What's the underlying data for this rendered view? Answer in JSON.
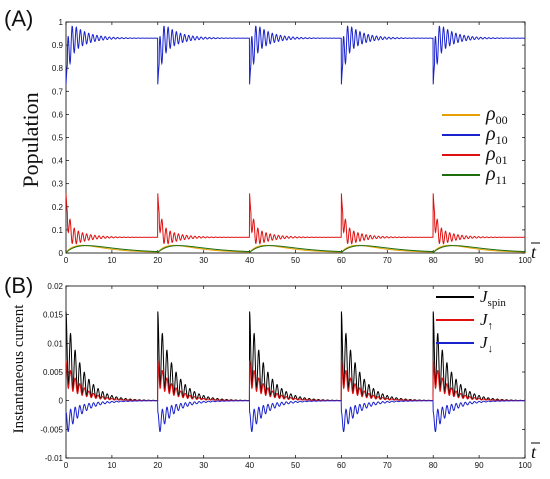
{
  "chart_data": [
    {
      "type": "line",
      "panel_label": "(A)",
      "title": "",
      "xlabel": "t",
      "ylabel": "Population",
      "xlim": [
        0,
        100
      ],
      "ylim": [
        0,
        1
      ],
      "x_ticks": [
        0,
        10,
        20,
        30,
        40,
        50,
        60,
        70,
        80,
        90,
        100
      ],
      "y_ticks": [
        "0",
        "0.1",
        "0.2",
        "0.3",
        "0.4",
        "0.5",
        "0.6",
        "0.7",
        "0.8",
        "0.9",
        "1"
      ],
      "grid": false,
      "legend_position": "right",
      "pulse_starts": [
        0,
        20,
        40,
        60,
        80
      ],
      "series": [
        {
          "name": "ρ00",
          "label_main": "ρ",
          "label_sub": "00",
          "color": "#e8a000",
          "profile": {
            "steady": 0.003,
            "peak": 0.03,
            "peak_time": 3.5,
            "decay": 3.5,
            "osc_amp": 0.0,
            "osc_period": 1.0,
            "osc_decay": 3.0
          }
        },
        {
          "name": "ρ10",
          "label_main": "ρ",
          "label_sub": "10",
          "color": "#1a22cc",
          "profile": {
            "steady": 0.93,
            "jump": -0.2,
            "osc_amp": 0.1,
            "osc_period": 0.9,
            "osc_decay": 3.2
          }
        },
        {
          "name": "ρ01",
          "label_main": "ρ",
          "label_sub": "01",
          "color": "#e01010",
          "profile": {
            "steady": 0.068,
            "jump": 0.19,
            "osc_amp": 0.06,
            "osc_period": 0.9,
            "osc_decay": 3.2
          }
        },
        {
          "name": "ρ11",
          "label_main": "ρ",
          "label_sub": "11",
          "color": "#1e6e10",
          "profile": {
            "steady": 0.002,
            "peak": 0.03,
            "peak_time": 4.5,
            "decay": 4.5,
            "osc_amp": 0.0,
            "osc_period": 1.0,
            "osc_decay": 3.0
          }
        }
      ]
    },
    {
      "type": "line",
      "panel_label": "(B)",
      "title": "",
      "xlabel": "t",
      "ylabel": "Instantaneous current",
      "xlim": [
        0,
        100
      ],
      "ylim": [
        -0.01,
        0.02
      ],
      "x_ticks": [
        0,
        10,
        20,
        30,
        40,
        50,
        60,
        70,
        80,
        90,
        100
      ],
      "y_ticks": [
        "-0.01",
        "-0.005",
        "0",
        "0.005",
        "0.01",
        "0.015",
        "0.02"
      ],
      "y_tick_values": [
        -0.01,
        -0.005,
        0,
        0.005,
        0.01,
        0.015,
        0.02
      ],
      "grid": false,
      "legend_position": "top-right",
      "pulse_starts": [
        0,
        20,
        40,
        60,
        80
      ],
      "series": [
        {
          "name": "Jspin",
          "label_main": "J",
          "label_sub": "spin",
          "color": "#000000",
          "profile": {
            "base": 0.0068,
            "osc_amp": 0.0125,
            "osc_period": 1.0,
            "decay": 3.5
          }
        },
        {
          "name": "J↑",
          "label_main": "J",
          "label_sub": "↑",
          "color": "#e01010",
          "profile": {
            "base": 0.0055,
            "osc_amp": 0.0045,
            "osc_period": 1.0,
            "decay": 3.5
          }
        },
        {
          "name": "J↓",
          "label_main": "J",
          "label_sub": "↓",
          "color": "#1a22cc",
          "profile": {
            "base": -0.0062,
            "osc_amp": 0.0042,
            "osc_period": 1.0,
            "decay": 3.5
          }
        }
      ]
    }
  ]
}
